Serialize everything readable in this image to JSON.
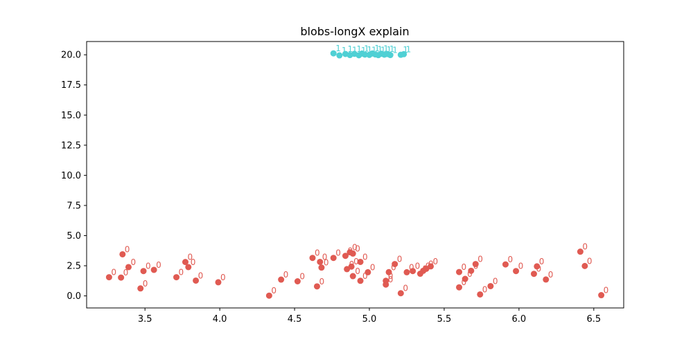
{
  "chart_data": {
    "type": "scatter",
    "title": "blobs-longX explain",
    "xlabel": "",
    "ylabel": "",
    "xlim": [
      3.11,
      6.7
    ],
    "ylim": [
      -1.0,
      21.1
    ],
    "x_ticks": [
      3.5,
      4.0,
      4.5,
      5.0,
      5.5,
      6.0,
      6.5
    ],
    "x_tick_labels": [
      "3.5",
      "4.0",
      "4.5",
      "5.0",
      "5.5",
      "6.0",
      "6.5"
    ],
    "y_ticks": [
      0.0,
      2.5,
      5.0,
      7.5,
      10.0,
      12.5,
      15.0,
      17.5,
      20.0
    ],
    "y_tick_labels": [
      "0.0",
      "2.5",
      "5.0",
      "7.5",
      "10.0",
      "12.5",
      "15.0",
      "17.5",
      "20.0"
    ],
    "grid": false,
    "legend": "none",
    "series": [
      {
        "label": "0",
        "color": "#e05a52",
        "points": [
          [
            3.26,
            1.55
          ],
          [
            3.34,
            1.52
          ],
          [
            3.35,
            3.45
          ],
          [
            3.39,
            2.39
          ],
          [
            3.47,
            0.62
          ],
          [
            3.49,
            2.06
          ],
          [
            3.56,
            2.16
          ],
          [
            3.71,
            1.55
          ],
          [
            3.77,
            2.81
          ],
          [
            3.79,
            2.39
          ],
          [
            3.84,
            1.27
          ],
          [
            3.99,
            1.13
          ],
          [
            4.33,
            0.02
          ],
          [
            4.41,
            1.35
          ],
          [
            4.52,
            1.21
          ],
          [
            4.62,
            3.15
          ],
          [
            4.65,
            0.79
          ],
          [
            4.67,
            2.82
          ],
          [
            4.68,
            2.35
          ],
          [
            4.76,
            3.15
          ],
          [
            4.84,
            3.32
          ],
          [
            4.85,
            2.22
          ],
          [
            4.87,
            3.62
          ],
          [
            4.88,
            2.43
          ],
          [
            4.89,
            1.64
          ],
          [
            4.89,
            3.51
          ],
          [
            4.94,
            2.82
          ],
          [
            4.94,
            1.25
          ],
          [
            4.99,
            1.96
          ],
          [
            5.11,
            1.25
          ],
          [
            5.11,
            0.94
          ],
          [
            5.13,
            1.97
          ],
          [
            5.17,
            2.64
          ],
          [
            5.21,
            0.22
          ],
          [
            5.25,
            1.96
          ],
          [
            5.29,
            2.06
          ],
          [
            5.34,
            1.84
          ],
          [
            5.36,
            2.08
          ],
          [
            5.38,
            2.25
          ],
          [
            5.41,
            2.45
          ],
          [
            5.6,
            0.71
          ],
          [
            5.6,
            1.98
          ],
          [
            5.64,
            1.41
          ],
          [
            5.68,
            2.08
          ],
          [
            5.71,
            2.64
          ],
          [
            5.74,
            0.12
          ],
          [
            5.81,
            0.81
          ],
          [
            5.91,
            2.61
          ],
          [
            5.98,
            2.06
          ],
          [
            6.1,
            1.83
          ],
          [
            6.12,
            2.45
          ],
          [
            6.18,
            1.36
          ],
          [
            6.41,
            3.67
          ],
          [
            6.44,
            2.48
          ],
          [
            6.55,
            0.06
          ]
        ]
      },
      {
        "label": "1",
        "color": "#4fd0d4",
        "points": [
          [
            4.76,
            20.12
          ],
          [
            4.8,
            19.95
          ],
          [
            4.84,
            20.07
          ],
          [
            4.87,
            19.98
          ],
          [
            4.9,
            20.08
          ],
          [
            4.93,
            19.96
          ],
          [
            4.95,
            20.1
          ],
          [
            4.97,
            20.02
          ],
          [
            5.0,
            19.99
          ],
          [
            5.02,
            20.11
          ],
          [
            5.04,
            20.03
          ],
          [
            5.06,
            19.97
          ],
          [
            5.08,
            20.09
          ],
          [
            5.1,
            20.01
          ],
          [
            5.12,
            20.06
          ],
          [
            5.14,
            19.98
          ],
          [
            5.21,
            20.0
          ],
          [
            5.23,
            20.05
          ]
        ]
      }
    ]
  }
}
